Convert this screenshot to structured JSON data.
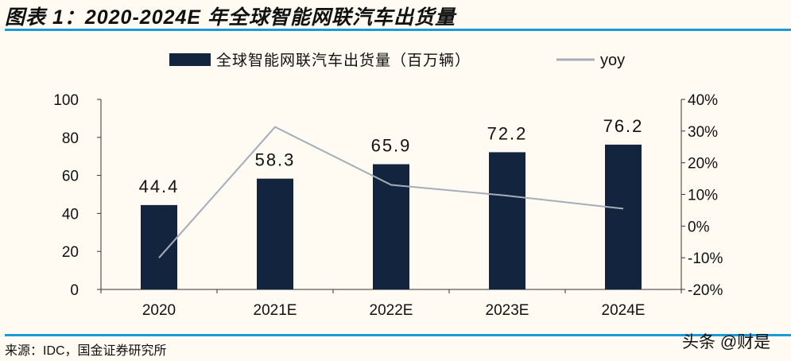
{
  "title": "图表 1：2020-2024E 年全球智能网联汽车出货量",
  "source": "来源：IDC，国金证券研究所",
  "watermark": "头条 @财是",
  "chart_data": {
    "type": "bar",
    "categories": [
      "2020",
      "2021E",
      "2022E",
      "2023E",
      "2024E"
    ],
    "series": [
      {
        "name": "全球智能网联汽车出货量（百万辆）",
        "type": "bar",
        "axis": "left",
        "color": "#13243f",
        "values": [
          44.4,
          58.3,
          65.9,
          72.2,
          76.2
        ],
        "labels": [
          "44.4",
          "58.3",
          "65.9",
          "72.2",
          "76.2"
        ]
      },
      {
        "name": "yoy",
        "type": "line",
        "axis": "right",
        "color": "#a5adb8",
        "values": [
          -10.0,
          31.3,
          13.0,
          9.6,
          5.5
        ]
      }
    ],
    "ylim": [
      0,
      100
    ],
    "yticks": [
      "0",
      "20",
      "40",
      "60",
      "80",
      "100"
    ],
    "y2lim": [
      -20,
      40
    ],
    "y2ticks": [
      "-20%",
      "-10%",
      "0%",
      "10%",
      "20%",
      "30%",
      "40%"
    ],
    "grid": false,
    "legend": "top-center"
  }
}
